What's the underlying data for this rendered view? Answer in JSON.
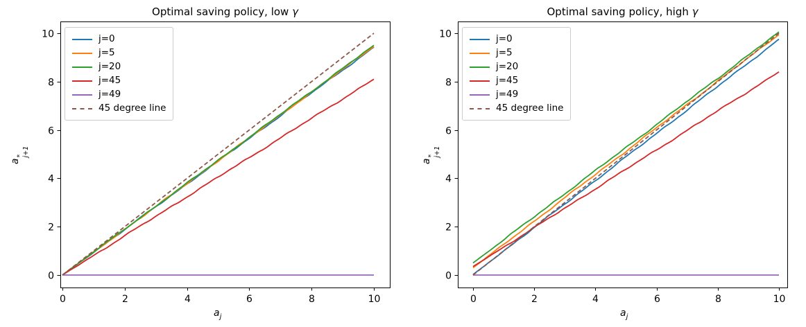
{
  "figure": {
    "background": "#ffffff"
  },
  "colors": {
    "axis": "#000000",
    "legend_border": "#cccccc",
    "blue": "#1f77b4",
    "orange": "#ff7f0e",
    "green": "#2ca02c",
    "red": "#d62728",
    "purple": "#9467bd",
    "brown": "#8c564b"
  },
  "chart_data": [
    {
      "type": "line",
      "title": {
        "prefix": "Optimal saving policy, low ",
        "gamma": "γ"
      },
      "xlabel": {
        "base": "a",
        "sub": "j"
      },
      "ylabel": {
        "base": "a",
        "sup": "*",
        "sub": "j+1"
      },
      "xlim": [
        0,
        10
      ],
      "ylim": [
        0,
        10
      ],
      "xticks": [
        0,
        2,
        4,
        6,
        8,
        10
      ],
      "yticks": [
        0,
        2,
        4,
        6,
        8,
        10
      ],
      "grid": false,
      "legend_position": "upper left",
      "series": [
        {
          "name": "j=0",
          "color": "#1f77b4",
          "style": "solid",
          "points": [
            [
              0,
              0.0
            ],
            [
              10,
              9.42
            ]
          ]
        },
        {
          "name": "j=5",
          "color": "#ff7f0e",
          "style": "solid",
          "points": [
            [
              0,
              0.0
            ],
            [
              10,
              9.46
            ]
          ]
        },
        {
          "name": "j=20",
          "color": "#2ca02c",
          "style": "solid",
          "points": [
            [
              0,
              0.0
            ],
            [
              10,
              9.5
            ]
          ]
        },
        {
          "name": "j=45",
          "color": "#d62728",
          "style": "solid",
          "points": [
            [
              0,
              0.0
            ],
            [
              10,
              8.1
            ]
          ]
        },
        {
          "name": "j=49",
          "color": "#9467bd",
          "style": "solid",
          "points": [
            [
              0,
              0.0
            ],
            [
              10,
              0.0
            ]
          ]
        },
        {
          "name": "45 degree line",
          "color": "#8c564b",
          "style": "dashed",
          "points": [
            [
              0,
              0.0
            ],
            [
              10,
              10.0
            ]
          ]
        }
      ]
    },
    {
      "type": "line",
      "title": {
        "prefix": "Optimal saving policy, high ",
        "gamma": "γ"
      },
      "xlabel": {
        "base": "a",
        "sub": "j"
      },
      "ylabel": {
        "base": "a",
        "sup": "*",
        "sub": "j+1"
      },
      "xlim": [
        0,
        10
      ],
      "ylim": [
        0,
        10
      ],
      "xticks": [
        0,
        2,
        4,
        6,
        8,
        10
      ],
      "yticks": [
        0,
        2,
        4,
        6,
        8,
        10
      ],
      "grid": false,
      "legend_position": "upper left",
      "series": [
        {
          "name": "j=0",
          "color": "#1f77b4",
          "style": "solid",
          "points": [
            [
              0,
              0.02
            ],
            [
              10,
              9.75
            ]
          ]
        },
        {
          "name": "j=5",
          "color": "#ff7f0e",
          "style": "solid",
          "points": [
            [
              0,
              0.3
            ],
            [
              10,
              9.95
            ]
          ]
        },
        {
          "name": "j=20",
          "color": "#2ca02c",
          "style": "solid",
          "points": [
            [
              0,
              0.5
            ],
            [
              10,
              10.05
            ]
          ]
        },
        {
          "name": "j=45",
          "color": "#d62728",
          "style": "solid",
          "points": [
            [
              0,
              0.35
            ],
            [
              10,
              8.4
            ]
          ]
        },
        {
          "name": "j=49",
          "color": "#9467bd",
          "style": "solid",
          "points": [
            [
              0,
              0.0
            ],
            [
              10,
              0.0
            ]
          ]
        },
        {
          "name": "45 degree line",
          "color": "#8c564b",
          "style": "dashed",
          "points": [
            [
              0,
              0.0
            ],
            [
              10,
              10.0
            ]
          ]
        }
      ]
    }
  ]
}
